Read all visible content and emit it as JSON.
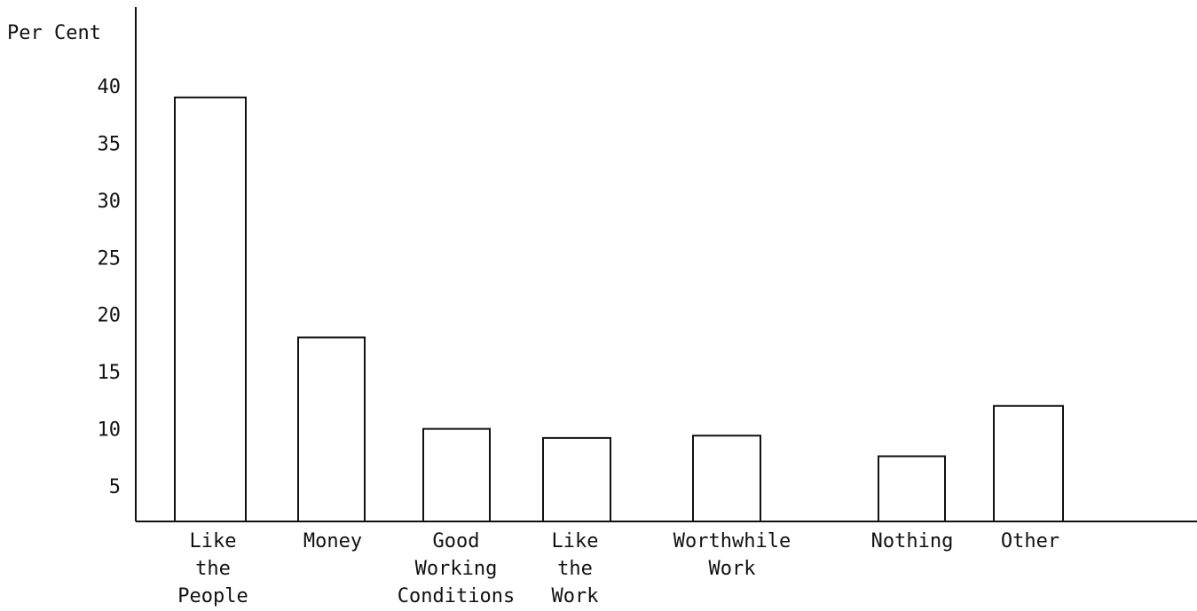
{
  "chart_data": {
    "type": "bar",
    "title": "",
    "xlabel": "",
    "ylabel": "Per Cent",
    "ylim": [
      1.5,
      42
    ],
    "yticks": [
      5,
      10,
      15,
      20,
      25,
      30,
      35,
      40
    ],
    "grid": false,
    "legend": "none",
    "categories": [
      [
        "Like",
        "the",
        "People"
      ],
      [
        "Money"
      ],
      [
        "Good",
        "Working",
        "Conditions"
      ],
      [
        "Like",
        "the",
        "Work"
      ],
      [
        "Worthwhile",
        "Work"
      ],
      [
        "Nothing"
      ],
      [
        "Other"
      ]
    ],
    "values": [
      39,
      18,
      10,
      9.2,
      9.4,
      7.6,
      12
    ],
    "colors": {
      "ink": "#111111",
      "background": "#ffffff"
    }
  }
}
